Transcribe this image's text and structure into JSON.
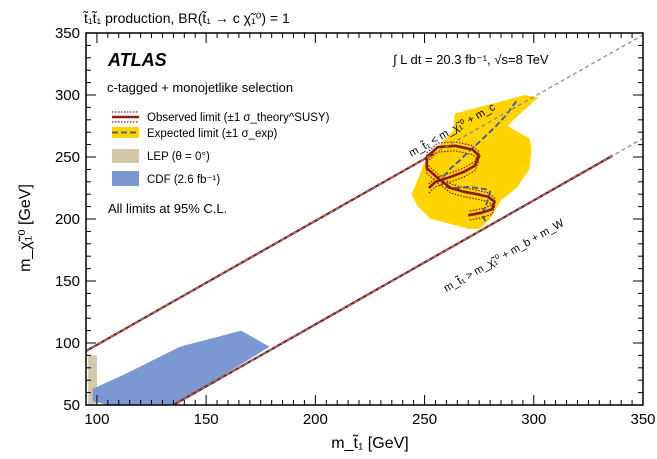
{
  "chart_data": {
    "type": "line",
    "title": "t̃₁t̃₁ production, BR(t̃₁ → c χ̃₁⁰) = 1",
    "xlabel": "m_t̃₁ [GeV]",
    "ylabel": "m_χ̃₁⁰ [GeV]",
    "xlim": [
      95,
      350
    ],
    "ylim": [
      50,
      350
    ],
    "xticks": [
      100,
      150,
      200,
      250,
      300,
      350
    ],
    "yticks": [
      50,
      100,
      150,
      200,
      250,
      300,
      350
    ],
    "atlas_label": "ATLAS",
    "lumi_label": "∫ L dt = 20.3 fb⁻¹,  √s=8 TeV",
    "selection_label": "c-tagged + monojetlike selection",
    "cl_label": "All limits at 95% C.L.",
    "kinematic_labels": {
      "upper": "m_t̃₁ < m_χ̃₁⁰ + m_c",
      "lower": "m_t̃₁ > m_χ̃₁⁰ + m_b + m_W"
    },
    "legend": [
      {
        "key": "observed",
        "label": "Observed limit (±1 σ_theory^SUSY)",
        "color": "#8b1a1a"
      },
      {
        "key": "expected",
        "label": "Expected limit (±1 σ_exp)",
        "color": "#3d5a99",
        "band": "#ffd400"
      },
      {
        "key": "lep",
        "label": "LEP (θ = 0°)",
        "color": "#d2c9ab"
      },
      {
        "key": "cdf",
        "label": "CDF (2.6 fb⁻¹)",
        "color": "#7b98d2"
      }
    ],
    "series": [
      {
        "name": "Observed limit",
        "x": [
          252,
          255,
          262,
          268,
          273,
          275,
          272,
          264,
          256,
          251,
          251,
          256,
          262,
          268,
          274,
          279,
          282,
          281,
          276,
          270
        ],
        "y": [
          225,
          230,
          234,
          238,
          243,
          251,
          256,
          259,
          258,
          250,
          241,
          233,
          225,
          222,
          220,
          218,
          214,
          208,
          205,
          203
        ]
      },
      {
        "name": "Expected limit",
        "x": [
          292,
          287,
          281,
          275,
          270,
          266,
          262,
          259,
          258,
          261,
          266,
          270,
          274,
          278,
          280,
          279,
          278,
          276,
          278
        ],
        "y": [
          295,
          283,
          272,
          262,
          254,
          247,
          241,
          235,
          228,
          225,
          225,
          226,
          225,
          224,
          222,
          216,
          210,
          204,
          198
        ]
      },
      {
        "name": "Expected ±1σ band",
        "x": [
          296,
          302,
          292,
          288,
          298,
          299,
          298,
          292,
          285,
          280,
          275,
          270,
          262,
          253,
          247,
          244,
          247,
          250,
          257,
          263,
          264
        ],
        "y": [
          300,
          298,
          282,
          275,
          265,
          257,
          240,
          225,
          215,
          200,
          192,
          192,
          196,
          200,
          210,
          220,
          232,
          246,
          260,
          271,
          285
        ]
      },
      {
        "name": "LEP (θ = 0°)",
        "x": [
          96,
          100,
          100,
          96
        ],
        "y": [
          50,
          50,
          90,
          90
        ]
      },
      {
        "name": "CDF (2.6 fb⁻¹)",
        "x": [
          98,
          113,
          138,
          166,
          179,
          136,
          105,
          98
        ],
        "y": [
          63,
          75,
          97,
          110,
          97,
          50,
          50,
          53
        ]
      }
    ]
  }
}
